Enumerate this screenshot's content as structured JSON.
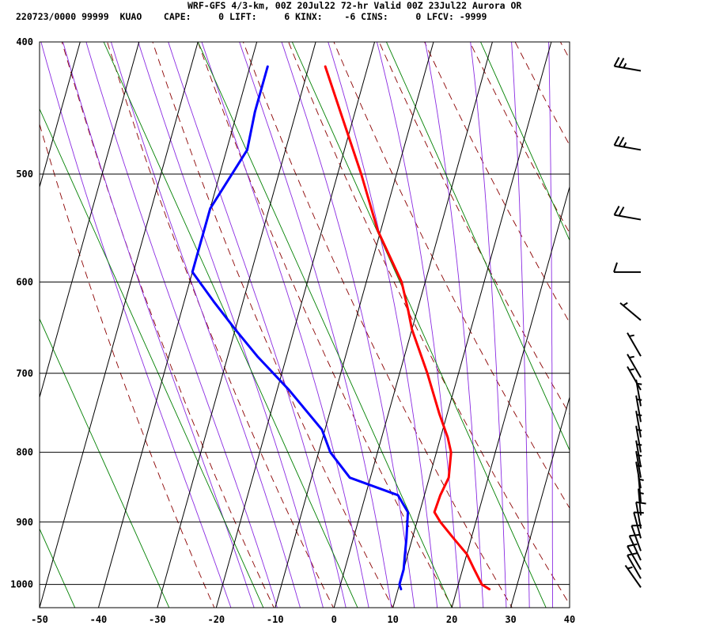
{
  "header": {
    "line1": "WRF-GFS 4/3-km, 00Z 20Jul22 72-hr Valid 00Z 23Jul22 Aurora OR",
    "line2": "220723/0000 99999  KUAO    CAPE:     0 LIFT:     6 KINX:    -6 CINS:     0 LFCV: -9999"
  },
  "colors": {
    "temperature": "#ff0000",
    "dewpoint": "#0000ff",
    "dry_adiabat": "#8b0000",
    "moist_adiabat": "#8a2be2",
    "mixing_ratio": "#008000",
    "grid": "#000000"
  },
  "chart_data": {
    "type": "skew-t",
    "x_axis": {
      "range": [
        -50,
        40
      ],
      "ticks": [
        -50,
        -40,
        -30,
        -20,
        -10,
        0,
        10,
        20,
        30,
        40
      ]
    },
    "y_axis": {
      "scale": "log-pressure",
      "range": [
        1040,
        400
      ],
      "ticks": [
        400,
        500,
        600,
        700,
        800,
        900,
        1000
      ]
    },
    "series": [
      {
        "key": "temperature",
        "points": [
          [
            1008,
            25.5
          ],
          [
            1000,
            24
          ],
          [
            975,
            22
          ],
          [
            950,
            20
          ],
          [
            925,
            17
          ],
          [
            900,
            14
          ],
          [
            885,
            12.5
          ],
          [
            860,
            12.7
          ],
          [
            835,
            13.3
          ],
          [
            800,
            12.5
          ],
          [
            780,
            11.2
          ],
          [
            750,
            8.7
          ],
          [
            700,
            4.7
          ],
          [
            650,
            0
          ],
          [
            630,
            -1.5
          ],
          [
            600,
            -4
          ],
          [
            550,
            -10.5
          ],
          [
            500,
            -16
          ],
          [
            450,
            -22.5
          ],
          [
            417,
            -27.2
          ]
        ]
      },
      {
        "key": "dewpoint",
        "points": [
          [
            1008,
            10.5
          ],
          [
            1000,
            10
          ],
          [
            975,
            10
          ],
          [
            950,
            9.5
          ],
          [
            925,
            9
          ],
          [
            885,
            8
          ],
          [
            860,
            5.5
          ],
          [
            835,
            -3.5
          ],
          [
            800,
            -8
          ],
          [
            770,
            -10.5
          ],
          [
            720,
            -18
          ],
          [
            680,
            -25
          ],
          [
            650,
            -30
          ],
          [
            620,
            -35
          ],
          [
            590,
            -40
          ],
          [
            560,
            -40
          ],
          [
            530,
            -40
          ],
          [
            480,
            -36.5
          ],
          [
            450,
            -37
          ],
          [
            417,
            -37
          ]
        ]
      }
    ],
    "wind_barbs": [
      {
        "p": 420,
        "dir": 280,
        "spd": 25
      },
      {
        "p": 480,
        "dir": 280,
        "spd": 25
      },
      {
        "p": 540,
        "dir": 280,
        "spd": 20
      },
      {
        "p": 590,
        "dir": 270,
        "spd": 10
      },
      {
        "p": 640,
        "dir": 310,
        "spd": 5
      },
      {
        "p": 680,
        "dir": 330,
        "spd": 5
      },
      {
        "p": 705,
        "dir": 330,
        "spd": 5
      },
      {
        "p": 720,
        "dir": 330,
        "spd": 5
      },
      {
        "p": 740,
        "dir": 350,
        "spd": 5
      },
      {
        "p": 760,
        "dir": 350,
        "spd": 5
      },
      {
        "p": 780,
        "dir": 350,
        "spd": 5
      },
      {
        "p": 800,
        "dir": 350,
        "spd": 5
      },
      {
        "p": 820,
        "dir": 350,
        "spd": 5
      },
      {
        "p": 835,
        "dir": 350,
        "spd": 5
      },
      {
        "p": 850,
        "dir": 350,
        "spd": 5
      },
      {
        "p": 870,
        "dir": 355,
        "spd": 5
      },
      {
        "p": 890,
        "dir": 355,
        "spd": 5
      },
      {
        "p": 910,
        "dir": 350,
        "spd": 10
      },
      {
        "p": 925,
        "dir": 345,
        "spd": 10
      },
      {
        "p": 945,
        "dir": 340,
        "spd": 10
      },
      {
        "p": 960,
        "dir": 335,
        "spd": 10
      },
      {
        "p": 975,
        "dir": 330,
        "spd": 10
      },
      {
        "p": 990,
        "dir": 330,
        "spd": 10
      },
      {
        "p": 1005,
        "dir": 325,
        "spd": 5
      }
    ]
  }
}
